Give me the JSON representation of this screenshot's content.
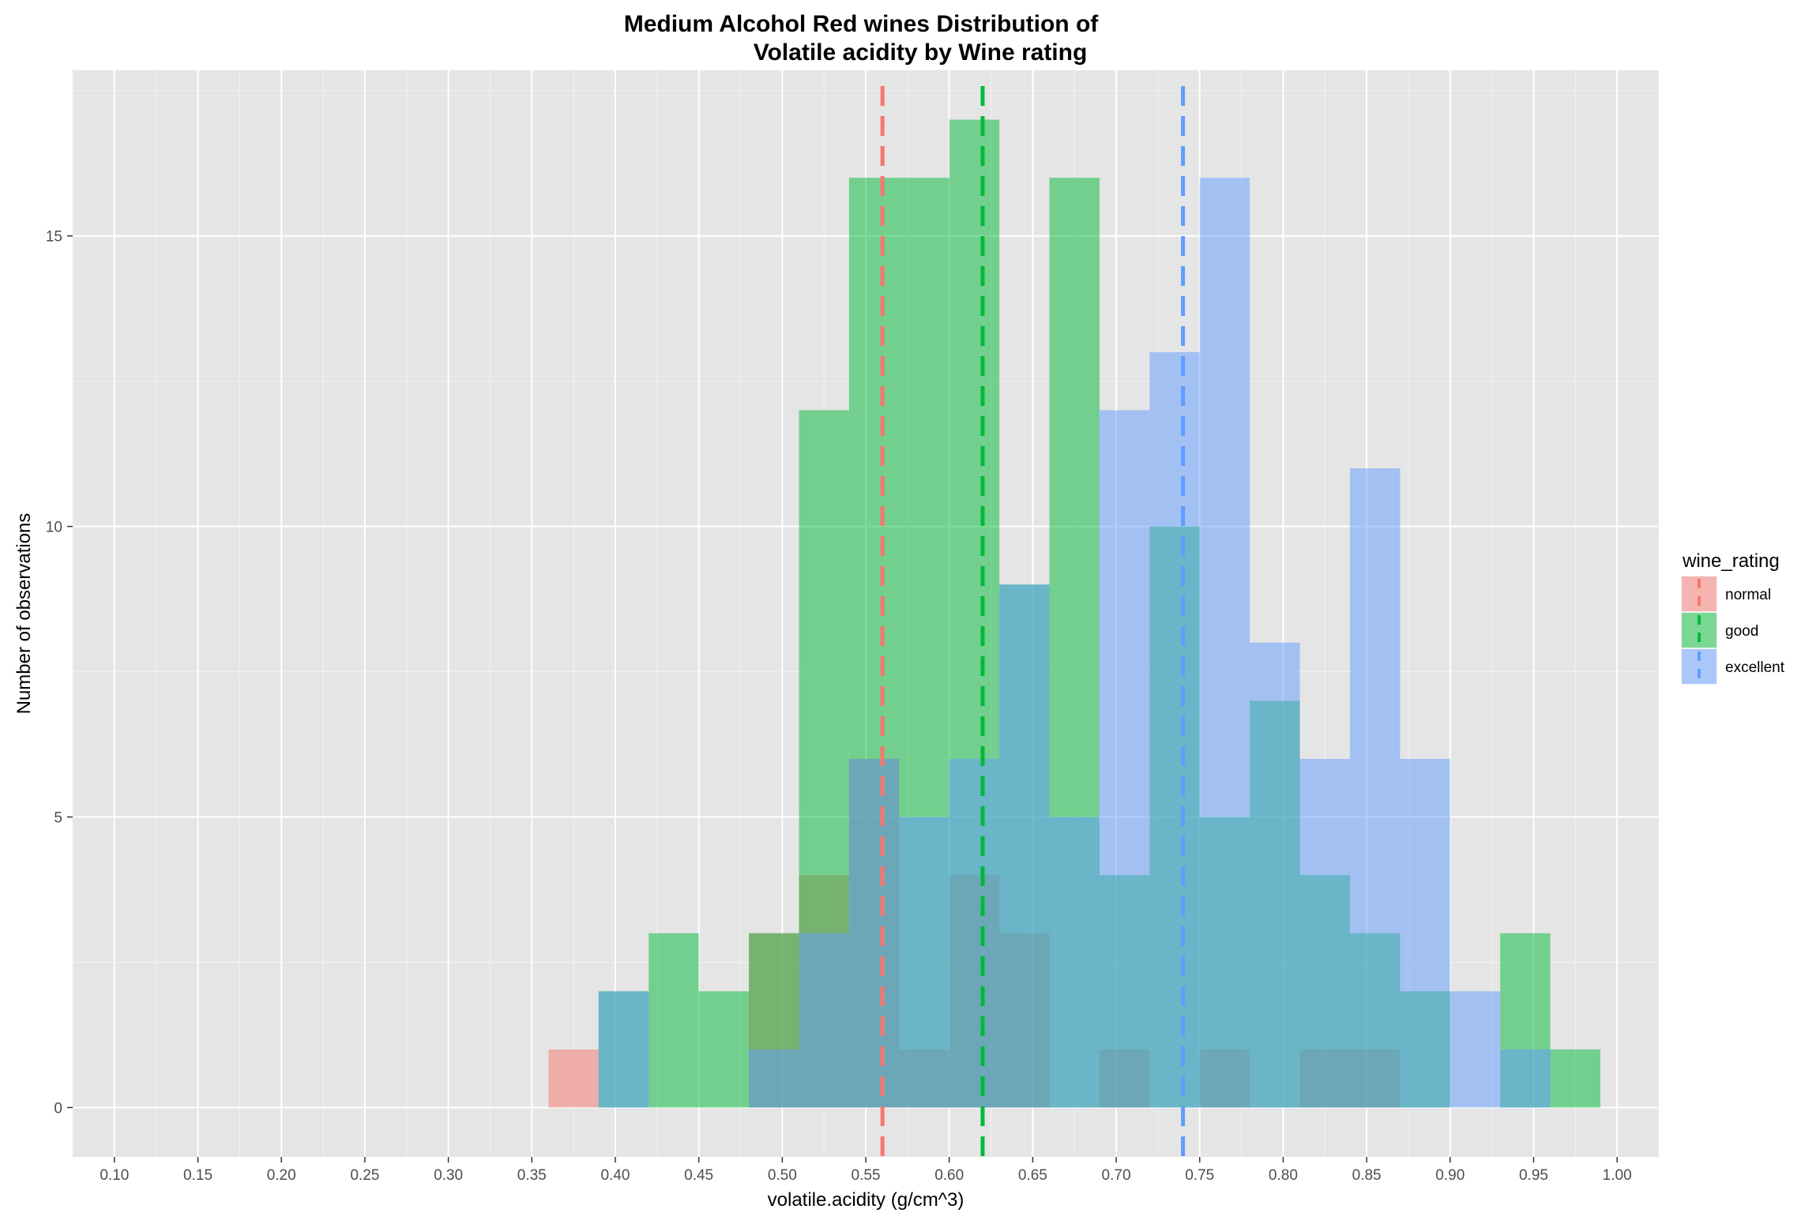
{
  "chart_data": {
    "type": "histogram",
    "title_line1": "Medium Alcohol Red wines Distribution of",
    "title_line2": "Volatile acidity by Wine rating",
    "xlabel": "volatile.acidity (g/cm^3)",
    "ylabel": "Number of observations",
    "xlim": [
      0.075,
      1.025
    ],
    "ylim": [
      -0.85,
      17.85
    ],
    "x_ticks": [
      0.1,
      0.15,
      0.2,
      0.25,
      0.3,
      0.35,
      0.4,
      0.45,
      0.5,
      0.55,
      0.6,
      0.65,
      0.7,
      0.75,
      0.8,
      0.85,
      0.9,
      0.95,
      1.0
    ],
    "x_tick_labels": [
      "0.10",
      "0.15",
      "0.20",
      "0.25",
      "0.30",
      "0.35",
      "0.40",
      "0.45",
      "0.50",
      "0.55",
      "0.60",
      "0.65",
      "0.70",
      "0.75",
      "0.80",
      "0.85",
      "0.90",
      "0.95",
      "1.00"
    ],
    "y_ticks": [
      0,
      5,
      10,
      15
    ],
    "y_tick_labels": [
      "0",
      "5",
      "10",
      "15"
    ],
    "bin_width": 0.03,
    "grid": true,
    "background": "#e5e5e5",
    "legend": {
      "title": "wine_rating",
      "position": "right",
      "entries": [
        "normal",
        "good",
        "excellent"
      ]
    },
    "series": [
      {
        "name": "normal",
        "color": "#F8766D",
        "mean": 0.56,
        "bins": [
          {
            "x0": 0.36,
            "x1": 0.39,
            "count": 1
          },
          {
            "x0": 0.39,
            "x1": 0.42,
            "count": 0
          },
          {
            "x0": 0.42,
            "x1": 0.45,
            "count": 0
          },
          {
            "x0": 0.45,
            "x1": 0.48,
            "count": 0
          },
          {
            "x0": 0.48,
            "x1": 0.51,
            "count": 3
          },
          {
            "x0": 0.51,
            "x1": 0.54,
            "count": 4
          },
          {
            "x0": 0.54,
            "x1": 0.57,
            "count": 6
          },
          {
            "x0": 0.57,
            "x1": 0.6,
            "count": 1
          },
          {
            "x0": 0.6,
            "x1": 0.63,
            "count": 4
          },
          {
            "x0": 0.63,
            "x1": 0.66,
            "count": 3
          },
          {
            "x0": 0.66,
            "x1": 0.69,
            "count": 0
          },
          {
            "x0": 0.69,
            "x1": 0.72,
            "count": 1
          },
          {
            "x0": 0.72,
            "x1": 0.75,
            "count": 0
          },
          {
            "x0": 0.75,
            "x1": 0.78,
            "count": 1
          },
          {
            "x0": 0.78,
            "x1": 0.81,
            "count": 0
          },
          {
            "x0": 0.81,
            "x1": 0.84,
            "count": 1
          },
          {
            "x0": 0.84,
            "x1": 0.87,
            "count": 1
          }
        ]
      },
      {
        "name": "good",
        "color": "#00BA38",
        "mean": 0.62,
        "bins": [
          {
            "x0": 0.39,
            "x1": 0.42,
            "count": 2
          },
          {
            "x0": 0.42,
            "x1": 0.45,
            "count": 3
          },
          {
            "x0": 0.45,
            "x1": 0.48,
            "count": 2
          },
          {
            "x0": 0.48,
            "x1": 0.51,
            "count": 3
          },
          {
            "x0": 0.51,
            "x1": 0.54,
            "count": 12
          },
          {
            "x0": 0.54,
            "x1": 0.57,
            "count": 16
          },
          {
            "x0": 0.57,
            "x1": 0.6,
            "count": 16
          },
          {
            "x0": 0.6,
            "x1": 0.63,
            "count": 17
          },
          {
            "x0": 0.63,
            "x1": 0.66,
            "count": 9
          },
          {
            "x0": 0.66,
            "x1": 0.69,
            "count": 16
          },
          {
            "x0": 0.69,
            "x1": 0.72,
            "count": 4
          },
          {
            "x0": 0.72,
            "x1": 0.75,
            "count": 10
          },
          {
            "x0": 0.75,
            "x1": 0.78,
            "count": 5
          },
          {
            "x0": 0.78,
            "x1": 0.81,
            "count": 7
          },
          {
            "x0": 0.81,
            "x1": 0.84,
            "count": 4
          },
          {
            "x0": 0.84,
            "x1": 0.87,
            "count": 3
          },
          {
            "x0": 0.87,
            "x1": 0.9,
            "count": 2
          },
          {
            "x0": 0.9,
            "x1": 0.93,
            "count": 0
          },
          {
            "x0": 0.93,
            "x1": 0.96,
            "count": 3
          },
          {
            "x0": 0.96,
            "x1": 0.99,
            "count": 1
          }
        ]
      },
      {
        "name": "excellent",
        "color": "#619CFF",
        "mean": 0.74,
        "bins": [
          {
            "x0": 0.39,
            "x1": 0.42,
            "count": 2
          },
          {
            "x0": 0.42,
            "x1": 0.45,
            "count": 0
          },
          {
            "x0": 0.45,
            "x1": 0.48,
            "count": 0
          },
          {
            "x0": 0.48,
            "x1": 0.51,
            "count": 1
          },
          {
            "x0": 0.51,
            "x1": 0.54,
            "count": 3
          },
          {
            "x0": 0.54,
            "x1": 0.57,
            "count": 6
          },
          {
            "x0": 0.57,
            "x1": 0.6,
            "count": 5
          },
          {
            "x0": 0.6,
            "x1": 0.63,
            "count": 6
          },
          {
            "x0": 0.63,
            "x1": 0.66,
            "count": 9
          },
          {
            "x0": 0.66,
            "x1": 0.69,
            "count": 5
          },
          {
            "x0": 0.69,
            "x1": 0.72,
            "count": 12
          },
          {
            "x0": 0.72,
            "x1": 0.75,
            "count": 13
          },
          {
            "x0": 0.75,
            "x1": 0.78,
            "count": 16
          },
          {
            "x0": 0.78,
            "x1": 0.81,
            "count": 8
          },
          {
            "x0": 0.81,
            "x1": 0.84,
            "count": 6
          },
          {
            "x0": 0.84,
            "x1": 0.87,
            "count": 11
          },
          {
            "x0": 0.87,
            "x1": 0.9,
            "count": 6
          },
          {
            "x0": 0.9,
            "x1": 0.93,
            "count": 2
          },
          {
            "x0": 0.93,
            "x1": 0.96,
            "count": 1
          }
        ]
      }
    ]
  }
}
